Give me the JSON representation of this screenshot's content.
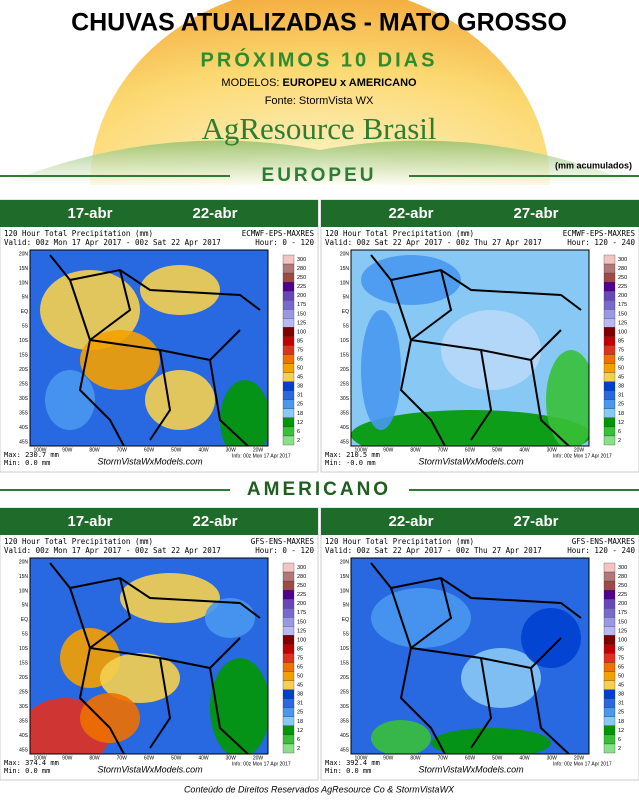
{
  "header": {
    "title": "CHUVAS ATUALIZADAS - MATO GROSSO",
    "subtitle": "PRÓXIMOS 10 DIAS",
    "models_label": "MODELOS: ",
    "models": "EUROPEU x AMERICANO",
    "source": "Fonte: StormVista WX",
    "brand": "AgResource Brasil",
    "units_note": "(mm acumulados)"
  },
  "sections": [
    {
      "name": "EUROPEU",
      "panels": [
        {
          "date_start": "17-abr",
          "date_end": "22-abr",
          "title": "120 Hour Total Precipitation (mm)",
          "model": "ECMWF-EPS-MAXRES",
          "valid": "Valid: 00z Mon 17 Apr 2017 - 00z Sat 22 Apr 2017",
          "hour": "Hour: 0 - 120",
          "max": "Max: 230.7 mm",
          "min": "Min: 0.0 mm",
          "site": "StormVistaWxModels.com",
          "info": "Info: 00z Mon 17 Apr 2017"
        },
        {
          "date_start": "22-abr",
          "date_end": "27-abr",
          "title": "120 Hour Total Precipitation (mm)",
          "model": "ECMWF-EPS-MAXRES",
          "valid": "Valid: 00z Sat 22 Apr 2017 - 00z Thu 27 Apr 2017",
          "hour": "Hour: 120 - 240",
          "max": "Max: 210.5 mm",
          "min": "Min: -0.0 mm",
          "site": "StormVistaWxModels.com",
          "info": "Info: 00z Mon 17 Apr 2017"
        }
      ]
    },
    {
      "name": "AMERICANO",
      "panels": [
        {
          "date_start": "17-abr",
          "date_end": "22-abr",
          "title": "120 Hour Total Precipitation (mm)",
          "model": "GFS-ENS-MAXRES",
          "valid": "Valid: 00z Mon 17 Apr 2017 - 00z Sat 22 Apr 2017",
          "hour": "Hour: 0 - 120",
          "max": "Max: 374.4 mm",
          "min": "Min: 0.0 mm",
          "site": "StormVistaWxModels.com",
          "info": "Info: 00z Mon 17 Apr 2017"
        },
        {
          "date_start": "22-abr",
          "date_end": "27-abr",
          "title": "120 Hour Total Precipitation (mm)",
          "model": "GFS-ENS-MAXRES",
          "valid": "Valid: 00z Sat 22 Apr 2017 - 00z Thu 27 Apr 2017",
          "hour": "Hour: 120 - 240",
          "max": "Max: 392.4 mm",
          "min": "Min: 0.0 mm",
          "site": "StormVistaWxModels.com",
          "info": "Info: 00z Mon 17 Apr 2017"
        }
      ]
    }
  ],
  "map_axes": {
    "lat_labels": [
      "20N",
      "15N",
      "10N",
      "5N",
      "EQ",
      "5S",
      "10S",
      "15S",
      "20S",
      "25S",
      "30S",
      "35S",
      "40S",
      "45S"
    ],
    "lon_labels": [
      "100W",
      "90W",
      "80W",
      "70W",
      "60W",
      "50W",
      "40W",
      "30W",
      "20W"
    ]
  },
  "colorbar": {
    "labels": [
      "300",
      "280",
      "250",
      "225",
      "200",
      "175",
      "150",
      "125",
      "100",
      "85",
      "75",
      "65",
      "50",
      "45",
      "38",
      "31",
      "25",
      "18",
      "12",
      "6",
      "2"
    ],
    "colors": [
      "#f4c4c4",
      "#b07878",
      "#a04848",
      "#500090",
      "#6848b8",
      "#7868d0",
      "#9898e4",
      "#b8b8f4",
      "#800000",
      "#c00000",
      "#e03020",
      "#f07000",
      "#f5a000",
      "#f5d050",
      "#0040d0",
      "#2868e0",
      "#4898f0",
      "#88c8f4",
      "#009800",
      "#38c038",
      "#88e088"
    ]
  },
  "footer": "Conteúdo de Direitos Reservados AgResource Co & StormVistaWX"
}
